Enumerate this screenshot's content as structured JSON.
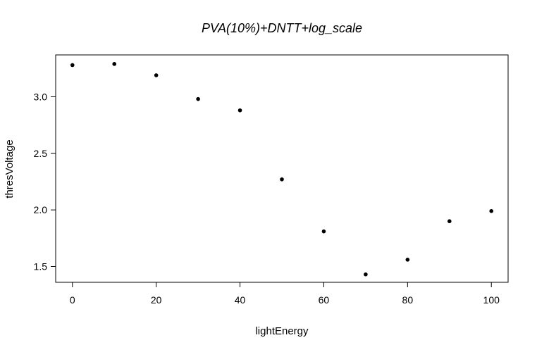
{
  "chart_data": {
    "type": "scatter",
    "title": "PVA(10%)+DNTT+log_scale",
    "xlabel": "lightEnergy",
    "ylabel": "thresVoltage",
    "x": [
      0,
      10,
      20,
      30,
      40,
      50,
      60,
      70,
      80,
      90,
      100
    ],
    "y": [
      3.28,
      3.29,
      3.19,
      2.98,
      2.88,
      2.27,
      1.81,
      1.43,
      1.56,
      1.9,
      1.99
    ],
    "xlim": [
      -4,
      104
    ],
    "ylim": [
      1.36,
      3.37
    ],
    "xticks": [
      0,
      20,
      40,
      60,
      80,
      100
    ],
    "yticks": [
      1.5,
      2.0,
      2.5,
      3.0
    ],
    "xtick_labels": [
      "0",
      "20",
      "40",
      "60",
      "80",
      "100"
    ],
    "ytick_labels": [
      "1.5",
      "2.0",
      "2.5",
      "3.0"
    ],
    "grid": false,
    "marker_color": "#000000"
  }
}
